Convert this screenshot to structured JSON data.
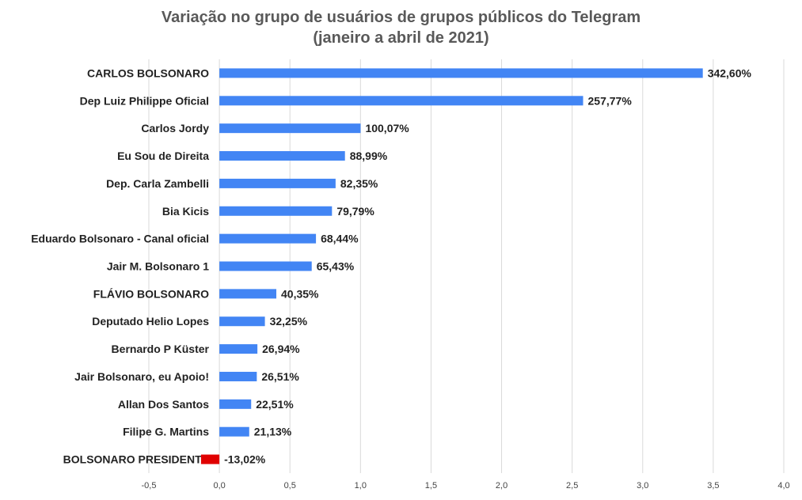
{
  "chart_data": {
    "type": "bar",
    "orientation": "horizontal",
    "title": "Variação no grupo de usuários de grupos públicos do Telegram",
    "subtitle": "(janeiro a abril de 2021)",
    "categories": [
      "CARLOS BOLSONARO",
      "Dep Luiz Philippe Oficial",
      "Carlos Jordy",
      "Eu Sou de Direita",
      "Dep. Carla Zambelli",
      "Bia Kicis",
      "Eduardo Bolsonaro - Canal oficial",
      "Jair M. Bolsonaro 1",
      "FLÁVIO BOLSONARO",
      "Deputado Helio Lopes",
      "Bernardo P Küster",
      "Jair Bolsonaro, eu Apoio!",
      "Allan Dos Santos",
      "Filipe G. Martins",
      "BOLSONARO PRESIDENTE"
    ],
    "values": [
      3.426,
      2.5777,
      1.0007,
      0.8899,
      0.8235,
      0.7979,
      0.6844,
      0.6543,
      0.4035,
      0.3225,
      0.2694,
      0.2651,
      0.2251,
      0.2113,
      -0.1302
    ],
    "data_labels": [
      "342,60%",
      "257,77%",
      "100,07%",
      "88,99%",
      "82,35%",
      "79,79%",
      "68,44%",
      "65,43%",
      "40,35%",
      "32,25%",
      "26,94%",
      "26,51%",
      "22,51%",
      "21,13%",
      "-13,02%"
    ],
    "xlim": [
      -0.5,
      4.0
    ],
    "xticks": [
      "-0,5",
      "0,0",
      "0,5",
      "1,0",
      "1,5",
      "2,0",
      "2,5",
      "3,0",
      "3,5",
      "4,0"
    ],
    "xtick_values": [
      -0.5,
      0,
      0.5,
      1.0,
      1.5,
      2.0,
      2.5,
      3.0,
      3.5,
      4.0
    ],
    "grid": "vertical",
    "legend": "none",
    "colors": {
      "positive": "#4285f4",
      "negative": "#e00000",
      "grid": "#d9d9d9",
      "text": "#222222",
      "tick_text": "#444444",
      "title": "#595959"
    }
  }
}
